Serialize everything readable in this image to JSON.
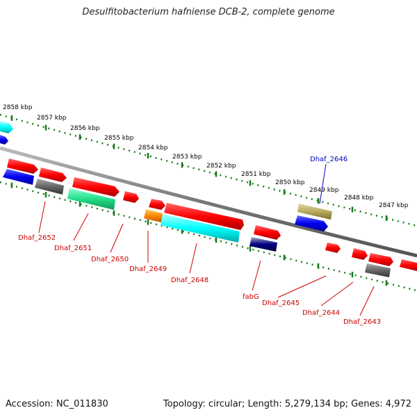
{
  "title": "Desulfitobacterium hafniense DCB-2, complete genome",
  "footer": {
    "accession": "Accession: NC_011830",
    "summary": "Topology: circular; Length: 5,279,134 bp; Genes: 4,972"
  },
  "kbp_labels": [
    "2858 kbp",
    "2857 kbp",
    "2856 kbp",
    "2855 kbp",
    "2854 kbp",
    "2853 kbp",
    "2852 kbp",
    "2851 kbp",
    "2850 kbp",
    "2849 kbp",
    "2848 kbp",
    "2847 kbp"
  ],
  "gene_labels": [
    {
      "text": "Dhaf_2646",
      "color": "#0000cc"
    },
    {
      "text": "Dhaf_2652",
      "color": "#cc0000"
    },
    {
      "text": "Dhaf_2651",
      "color": "#cc0000"
    },
    {
      "text": "Dhaf_2650",
      "color": "#cc0000"
    },
    {
      "text": "Dhaf_2649",
      "color": "#cc0000"
    },
    {
      "text": "Dhaf_2648",
      "color": "#cc0000"
    },
    {
      "text": "fabG",
      "color": "#cc0000"
    },
    {
      "text": "Dhaf_2645",
      "color": "#cc0000"
    },
    {
      "text": "Dhaf_2644",
      "color": "#cc0000"
    },
    {
      "text": "Dhaf_2643",
      "color": "#cc0000"
    }
  ],
  "colors": {
    "backbone": "#888888",
    "tick": "#1a7a1a",
    "red": "#ff0000",
    "blue": "#0000ee",
    "cyan": "#00ffff",
    "gray": "#666666",
    "seagreen": "#22dd88",
    "orange": "#ff8800",
    "olive": "#b8aa60",
    "navy": "#000080"
  }
}
